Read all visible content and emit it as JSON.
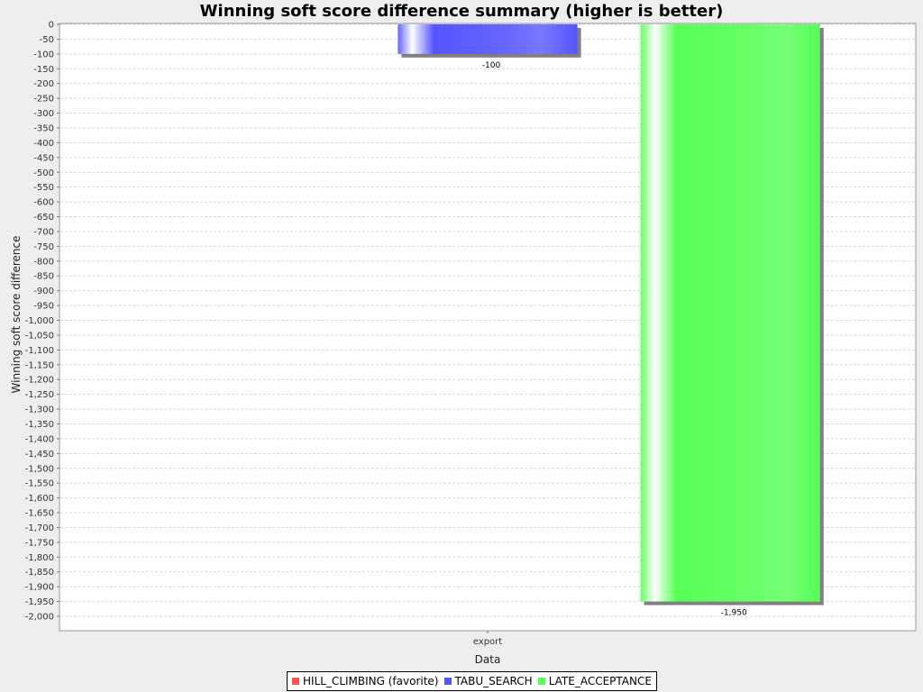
{
  "chart_data": {
    "type": "bar",
    "title": "Winning soft score difference summary (higher is better)",
    "xlabel": "Data",
    "ylabel": "Winning soft score difference",
    "categories": [
      "export"
    ],
    "ylim": [
      -2000,
      0
    ],
    "ytick_step": 50,
    "grid": true,
    "legend_placement": "bottom",
    "series": [
      {
        "name": "HILL_CLIMBING (favorite)",
        "color": "#ff5555",
        "values": [
          0
        ],
        "label": ""
      },
      {
        "name": "TABU_SEARCH",
        "color": "#5555ff",
        "values": [
          -100
        ],
        "label": "-100"
      },
      {
        "name": "LATE_ACCEPTANCE",
        "color": "#55ff55",
        "values": [
          -1950
        ],
        "label": "-1,950"
      }
    ]
  }
}
